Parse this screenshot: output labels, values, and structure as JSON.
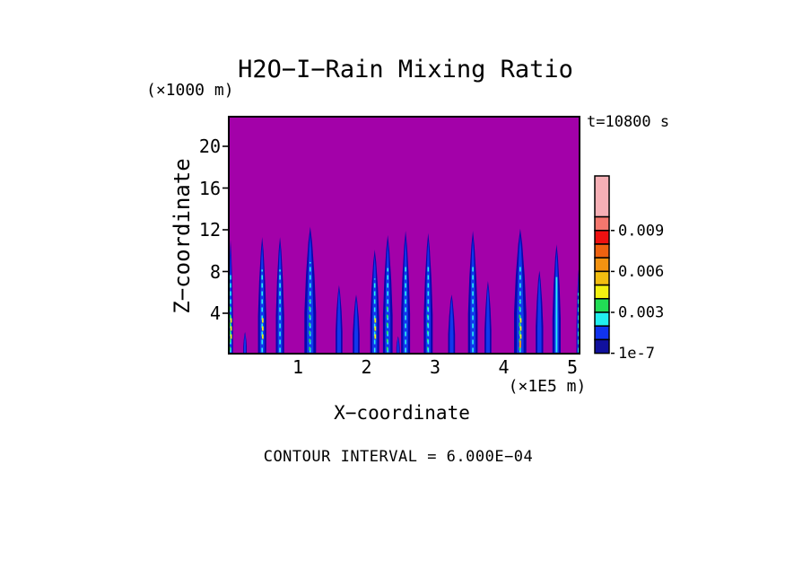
{
  "chart_data": {
    "type": "heatmap",
    "title": "H2O−I−Rain Mixing Ratio",
    "time_annotation": "t=10800 s",
    "xlabel": "X−coordinate",
    "x_unit_label": "(×1E5 m)",
    "ylabel": "Z−coordinate",
    "y_unit_label": "(×1000 m)",
    "footnote": "CONTOUR INTERVAL = 6.000E−04",
    "x_ticks": [
      1,
      2,
      3,
      4,
      5
    ],
    "y_ticks": [
      20,
      16,
      12,
      8,
      4
    ],
    "xlim": [
      0,
      5.11
    ],
    "ylim": [
      0,
      22.9
    ],
    "grid": false,
    "field_background_color": "#A301A9",
    "frame_color": "#000000",
    "plume_palette": {
      "outer": "#0808AE",
      "inner": "#1238EC",
      "cyan": "#2AEFEF",
      "cyan-solid": "#2AEFEF",
      "green": "#22DD55",
      "yellow": "#F0F011",
      "orange": "#F29211"
    },
    "colorbar": {
      "segment_colors_top_to_bottom": [
        "#F5AFB5",
        "#F4776E",
        "#EE1111",
        "#EE6211",
        "#F29211",
        "#F2BE11",
        "#F2F211",
        "#22DD55",
        "#22EEEE",
        "#1133EE",
        "#11119E"
      ],
      "top_segment_span_units": 3,
      "labels": [
        {
          "text": "0.009",
          "boundary_index": 1
        },
        {
          "text": "0.006",
          "boundary_index": 4
        },
        {
          "text": "0.003",
          "boundary_index": 7
        },
        {
          "text": "1e-7",
          "boundary_index": 10
        }
      ]
    },
    "plumes": [
      {
        "x": 0.02,
        "top": 11.0,
        "w": 0.07,
        "cores": [
          "cyan",
          "green",
          "yellow"
        ]
      },
      {
        "x": 0.23,
        "top": 2.2,
        "w": 0.05,
        "cores": []
      },
      {
        "x": 0.48,
        "top": 11.3,
        "w": 0.12,
        "cores": [
          "cyan",
          "yellow"
        ]
      },
      {
        "x": 0.74,
        "top": 11.3,
        "w": 0.12,
        "cores": [
          "cyan"
        ]
      },
      {
        "x": 1.18,
        "top": 12.3,
        "w": 0.17,
        "cores": [
          "cyan",
          "green"
        ]
      },
      {
        "x": 1.6,
        "top": 6.7,
        "w": 0.1,
        "cores": []
      },
      {
        "x": 1.85,
        "top": 5.8,
        "w": 0.1,
        "cores": []
      },
      {
        "x": 2.12,
        "top": 10.1,
        "w": 0.13,
        "cores": [
          "cyan",
          "yellow"
        ]
      },
      {
        "x": 2.31,
        "top": 11.5,
        "w": 0.14,
        "cores": [
          "cyan",
          "green"
        ]
      },
      {
        "x": 2.46,
        "top": 1.8,
        "w": 0.05,
        "cores": []
      },
      {
        "x": 2.57,
        "top": 11.9,
        "w": 0.13,
        "cores": [
          "cyan"
        ]
      },
      {
        "x": 2.9,
        "top": 11.7,
        "w": 0.13,
        "cores": [
          "green",
          "cyan"
        ]
      },
      {
        "x": 3.24,
        "top": 5.8,
        "w": 0.1,
        "cores": []
      },
      {
        "x": 3.55,
        "top": 11.9,
        "w": 0.14,
        "cores": [
          "cyan"
        ]
      },
      {
        "x": 3.77,
        "top": 7.1,
        "w": 0.1,
        "cores": []
      },
      {
        "x": 4.24,
        "top": 12.1,
        "w": 0.18,
        "cores": [
          "cyan",
          "green",
          "orange",
          "yellow"
        ]
      },
      {
        "x": 4.52,
        "top": 8.1,
        "w": 0.11,
        "cores": []
      },
      {
        "x": 4.77,
        "top": 10.6,
        "w": 0.12,
        "cores": [
          "cyan-solid"
        ]
      },
      {
        "x": 5.09,
        "top": 8.2,
        "w": 0.06,
        "cores": [
          "cyan"
        ]
      }
    ]
  }
}
